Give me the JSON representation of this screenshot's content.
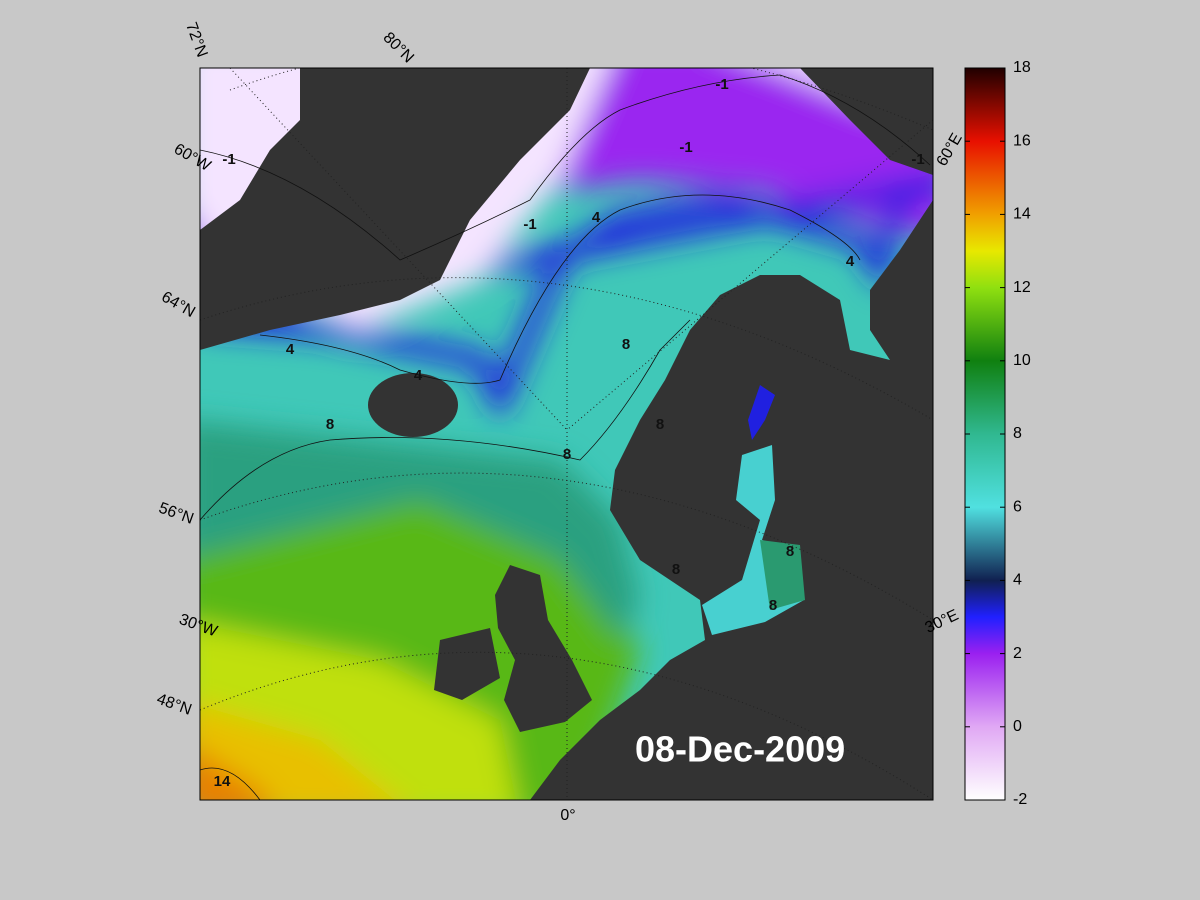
{
  "map": {
    "date_label": "08-Dec-2009",
    "graticule_labels": [
      "72°N",
      "80°N",
      "60°W",
      "64°N",
      "56°N",
      "30°W",
      "48°N",
      "0°",
      "30°E",
      "60°E"
    ],
    "contour_labels": [
      -1,
      -1,
      -1,
      -1,
      -1,
      4,
      4,
      4,
      4,
      8,
      8,
      8,
      8,
      8,
      8,
      8,
      14
    ],
    "colorbar": {
      "lim": [
        -2,
        18
      ],
      "ticks": [
        -2,
        0,
        2,
        4,
        6,
        8,
        10,
        12,
        14,
        16,
        18
      ]
    }
  }
}
